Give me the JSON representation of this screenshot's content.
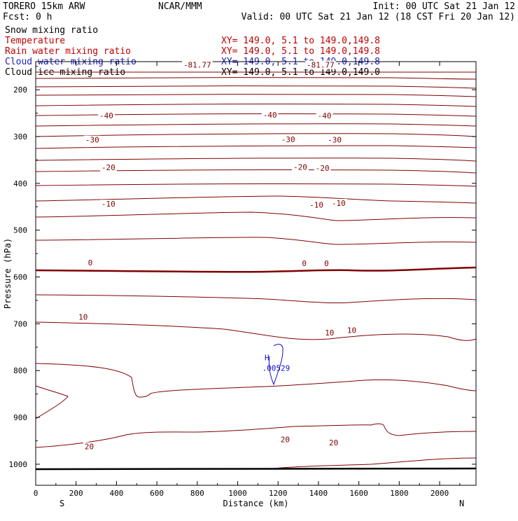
{
  "header": {
    "model": "TORERO  15km ARW",
    "org": "NCAR/MMM",
    "init": "Init: 00 UTC Sat 21 Jan 12",
    "fcst": "Fcst:    0 h",
    "valid": "Valid: 00 UTC Sat 21 Jan 12 (18 CST Fri 20 Jan 12)"
  },
  "fields": [
    {
      "label": "Snow mixing ratio",
      "color": "#000000",
      "xy": ""
    },
    {
      "label": "Temperature",
      "color": "#c00000",
      "xy": "XY= 149.0,  5.1 to 149.0,149.8"
    },
    {
      "label": "Rain water mixing ratio",
      "color": "#c00000",
      "xy": "XY= 149.0,  5.1 to 149.0,149.8"
    },
    {
      "label": "Cloud water mixing ratio",
      "color": "#2020c0",
      "xy": "XY= 149.0,  5.1 to 149.0,149.8"
    },
    {
      "label": "Cloud ice mixing ratio",
      "color": "#000000",
      "xy": "XY= 149.0,  5.1 to 149.0,149.0"
    }
  ],
  "colors": {
    "temperature": "#800000",
    "cloud_water": "#1010c8",
    "ground": "#000000"
  },
  "chart_data": {
    "type": "contour-cross-section",
    "xlabel": "Distance (km)",
    "ylabel": "Pressure (hPa)",
    "xlim": [
      0,
      2180
    ],
    "ylim": [
      1045,
      140
    ],
    "x_ticks": [
      0,
      200,
      400,
      600,
      800,
      1000,
      1200,
      1400,
      1600,
      1800,
      2000
    ],
    "y_ticks": [
      200,
      300,
      400,
      500,
      600,
      700,
      800,
      900,
      1000
    ],
    "end_labels": {
      "left": "S",
      "right": "N"
    },
    "isotherm_labels": [
      {
        "text": "-40",
        "x": 350,
        "p": 255
      },
      {
        "text": "-40",
        "x": 1160,
        "p": 254
      },
      {
        "text": "-40",
        "x": 1430,
        "p": 255
      },
      {
        "text": "-30",
        "x": 280,
        "p": 307
      },
      {
        "text": "-30",
        "x": 1250,
        "p": 306
      },
      {
        "text": "-30",
        "x": 1480,
        "p": 307
      },
      {
        "text": "-20",
        "x": 360,
        "p": 366
      },
      {
        "text": "-20",
        "x": 1310,
        "p": 365
      },
      {
        "text": "-20",
        "x": 1420,
        "p": 367
      },
      {
        "text": "-10",
        "x": 360,
        "p": 444
      },
      {
        "text": "-10",
        "x": 1390,
        "p": 446
      },
      {
        "text": "-10",
        "x": 1500,
        "p": 442
      },
      {
        "text": "0",
        "x": 270,
        "p": 569
      },
      {
        "text": "0",
        "x": 1330,
        "p": 571
      },
      {
        "text": "0",
        "x": 1440,
        "p": 571
      },
      {
        "text": "10",
        "x": 235,
        "p": 685
      },
      {
        "text": "10",
        "x": 1455,
        "p": 719
      },
      {
        "text": "10",
        "x": 1565,
        "p": 714
      },
      {
        "text": "20",
        "x": 265,
        "p": 962
      },
      {
        "text": "20",
        "x": 1235,
        "p": 947
      },
      {
        "text": "20",
        "x": 1475,
        "p": 954
      },
      {
        "text": "-81.77",
        "x": 800,
        "p": 147
      },
      {
        "text": "-81.77",
        "x": 1410,
        "p": 147
      }
    ],
    "cloud_water_max": {
      "marker": "H",
      "value": ".00529",
      "x": 1145,
      "p": 772
    }
  }
}
